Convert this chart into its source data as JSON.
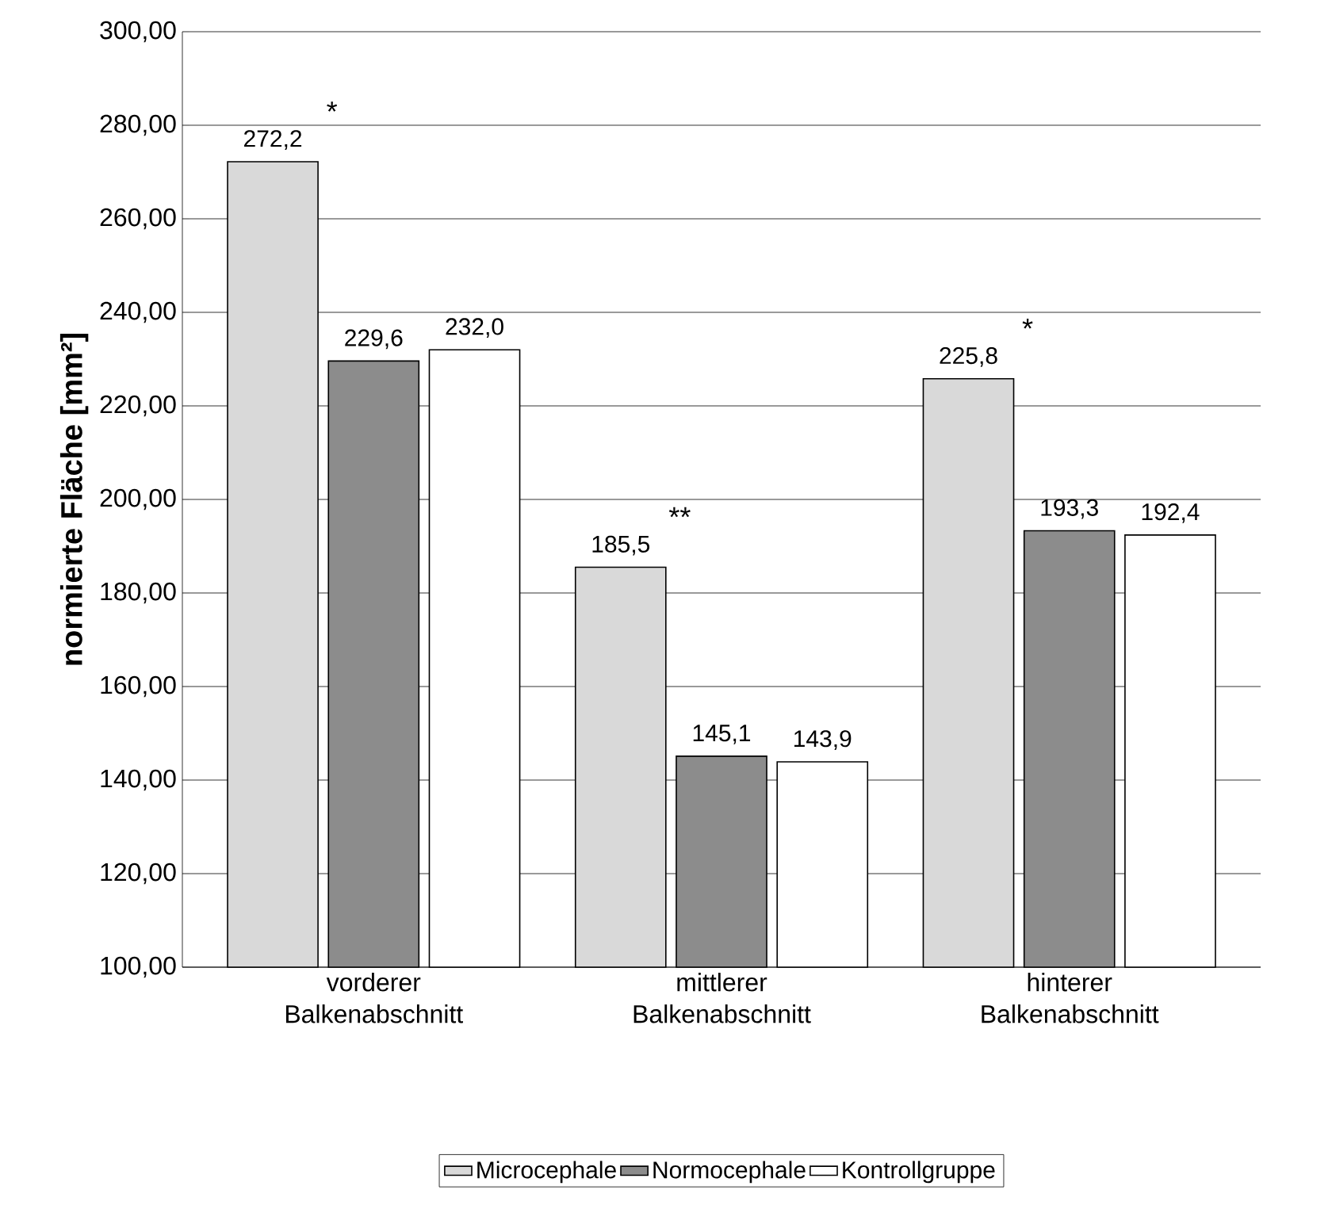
{
  "chart_data": {
    "type": "bar",
    "ylabel": "normierte Fläche [mm²]",
    "categories": [
      "vorderer Balkenabschnitt",
      "mittlerer Balkenabschnitt",
      "hinterer Balkenabschnitt"
    ],
    "series": [
      {
        "name": "Microcephale",
        "color": "#d9d9d9",
        "values": [
          272.2,
          185.5,
          225.8
        ],
        "value_labels": [
          "272,2",
          "185,5",
          "225,8"
        ]
      },
      {
        "name": "Normocephale",
        "color": "#8c8c8c",
        "values": [
          229.6,
          145.1,
          193.3
        ],
        "value_labels": [
          "229,6",
          "145,1",
          "193,3"
        ]
      },
      {
        "name": "Kontrollgruppe",
        "color": "#ffffff",
        "values": [
          232.0,
          143.9,
          192.4
        ],
        "value_labels": [
          "232,0",
          "143,9",
          "192,4"
        ]
      }
    ],
    "ylim": [
      100,
      300
    ],
    "yticks": [
      {
        "value": 100,
        "label": "100,00"
      },
      {
        "value": 120,
        "label": "120,00"
      },
      {
        "value": 140,
        "label": "140,00"
      },
      {
        "value": 160,
        "label": "160,00"
      },
      {
        "value": 180,
        "label": "180,00"
      },
      {
        "value": 200,
        "label": "200,00"
      },
      {
        "value": 220,
        "label": "220,00"
      },
      {
        "value": 240,
        "label": "240,00"
      },
      {
        "value": 260,
        "label": "260,00"
      },
      {
        "value": 280,
        "label": "280,00"
      },
      {
        "value": 300,
        "label": "300,00"
      }
    ],
    "grid": "y",
    "legend": "bottom",
    "annotations": [
      "*",
      "**",
      "*"
    ]
  }
}
